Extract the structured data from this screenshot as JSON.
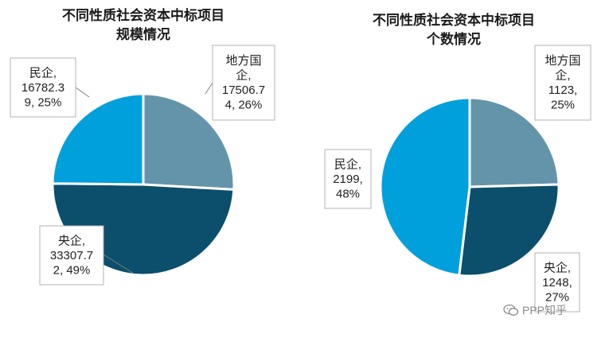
{
  "chart_data": [
    {
      "type": "pie",
      "title_line1": "不同性质社会资本中标项目",
      "title_line2": "规模情况",
      "slices": [
        {
          "label": "地方国企",
          "value": 17506.74,
          "percent": 26,
          "color": "#6494aa"
        },
        {
          "label": "央企",
          "value": 33307.72,
          "percent": 49,
          "color": "#0b4f6c"
        },
        {
          "label": "民企",
          "value": 16782.39,
          "percent": 25,
          "color": "#00a0dc"
        }
      ],
      "label_lines": [
        [
          "地方国",
          "企,",
          "17506.7",
          "4, 26%"
        ],
        [
          "央企,",
          "33307.7",
          "2, 49%"
        ],
        [
          "民企,",
          "16782.3",
          "9, 25%"
        ]
      ]
    },
    {
      "type": "pie",
      "title_line1": "不同性质社会资本中标项目",
      "title_line2": "个数情况",
      "slices": [
        {
          "label": "地方国企",
          "value": 1123,
          "percent": 25,
          "color": "#6494aa"
        },
        {
          "label": "央企",
          "value": 1248,
          "percent": 27,
          "color": "#0b4f6c"
        },
        {
          "label": "民企",
          "value": 2199,
          "percent": 48,
          "color": "#00a0dc"
        }
      ],
      "label_lines": [
        [
          "地方国",
          "企,",
          "1123,",
          "25%"
        ],
        [
          "央企,",
          "1248,",
          "27%"
        ],
        [
          "民企,",
          "2199,",
          "48%"
        ]
      ]
    }
  ],
  "watermark": {
    "text": "PPP知乎",
    "icon": "wechat-icon"
  }
}
